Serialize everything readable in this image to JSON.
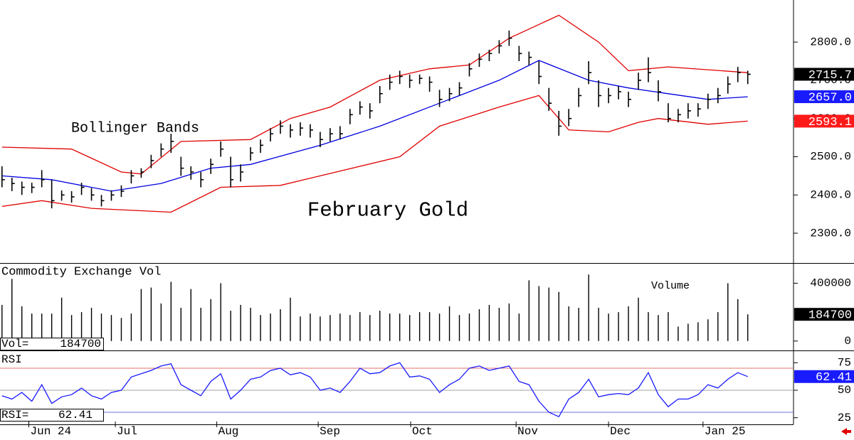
{
  "chart_data": [
    {
      "type": "ohlc",
      "title": "February Gold",
      "annotation": "Bollinger Bands",
      "xlim": [
        -0.2,
        79.6
      ],
      "ylim": [
        2222,
        2910
      ],
      "yticks": [
        {
          "value": 2300,
          "label": "2300.0"
        },
        {
          "value": 2400,
          "label": "2400.0"
        },
        {
          "value": 2500,
          "label": "2500.0"
        },
        {
          "value": 2600,
          "label": "2600.0"
        },
        {
          "value": 2700,
          "label": "2700.0"
        },
        {
          "value": 2800,
          "label": "2800.0"
        }
      ],
      "x": [
        0,
        1,
        2,
        3,
        4,
        5,
        6,
        7,
        8,
        9,
        10,
        11,
        12,
        13,
        14,
        15,
        16,
        17,
        18,
        19,
        20,
        21,
        22,
        23,
        24,
        25,
        26,
        27,
        28,
        29,
        30,
        31,
        32,
        33,
        34,
        35,
        36,
        37,
        38,
        39,
        40,
        41,
        42,
        43,
        44,
        45,
        46,
        47,
        48,
        49,
        50,
        51,
        52,
        53,
        54,
        55,
        56,
        57,
        58,
        59,
        60,
        61,
        62,
        63,
        64,
        65,
        66,
        67,
        68,
        69,
        70,
        71,
        72,
        73,
        74,
        75
      ],
      "color": "#000000",
      "high": [
        2475,
        2445,
        2435,
        2432,
        2465,
        2440,
        2412,
        2410,
        2432,
        2418,
        2400,
        2412,
        2425,
        2465,
        2470,
        2505,
        2535,
        2560,
        2500,
        2475,
        2460,
        2495,
        2540,
        2500,
        2480,
        2525,
        2545,
        2575,
        2595,
        2585,
        2590,
        2585,
        2565,
        2575,
        2580,
        2625,
        2645,
        2640,
        2685,
        2715,
        2725,
        2715,
        2715,
        2710,
        2675,
        2680,
        2695,
        2745,
        2770,
        2780,
        2805,
        2830,
        2790,
        2775,
        2750,
        2680,
        2620,
        2625,
        2680,
        2750,
        2700,
        2680,
        2685,
        2670,
        2720,
        2760,
        2700,
        2640,
        2625,
        2640,
        2640,
        2665,
        2680,
        2710,
        2735,
        2725
      ],
      "low": [
        2420,
        2410,
        2400,
        2405,
        2420,
        2365,
        2385,
        2380,
        2400,
        2385,
        2370,
        2385,
        2395,
        2430,
        2445,
        2470,
        2500,
        2510,
        2450,
        2440,
        2420,
        2455,
        2500,
        2420,
        2435,
        2490,
        2510,
        2540,
        2560,
        2550,
        2555,
        2550,
        2525,
        2540,
        2545,
        2585,
        2610,
        2600,
        2640,
        2675,
        2690,
        2680,
        2690,
        2670,
        2630,
        2645,
        2660,
        2710,
        2735,
        2750,
        2770,
        2790,
        2750,
        2740,
        2690,
        2620,
        2555,
        2580,
        2630,
        2690,
        2630,
        2640,
        2650,
        2630,
        2675,
        2695,
        2645,
        2590,
        2590,
        2600,
        2605,
        2625,
        2640,
        2665,
        2695,
        2690
      ],
      "close": [
        2440,
        2430,
        2420,
        2420,
        2440,
        2385,
        2400,
        2395,
        2420,
        2400,
        2385,
        2400,
        2410,
        2450,
        2460,
        2490,
        2520,
        2540,
        2470,
        2460,
        2440,
        2480,
        2520,
        2440,
        2460,
        2510,
        2530,
        2560,
        2580,
        2570,
        2575,
        2570,
        2545,
        2560,
        2560,
        2610,
        2630,
        2620,
        2665,
        2695,
        2710,
        2700,
        2705,
        2695,
        2650,
        2665,
        2680,
        2730,
        2755,
        2770,
        2790,
        2810,
        2770,
        2760,
        2710,
        2640,
        2580,
        2600,
        2660,
        2720,
        2660,
        2660,
        2670,
        2650,
        2700,
        2720,
        2670,
        2600,
        2610,
        2620,
        2625,
        2650,
        2660,
        2690,
        2720,
        2715.7
      ],
      "bands": [
        {
          "color": "#e00000",
          "x": [
            0,
            7,
            12,
            14,
            18,
            25,
            29,
            33,
            38,
            43,
            47,
            51,
            56,
            60,
            63,
            67,
            75
          ],
          "values": [
            2525,
            2520,
            2460,
            2455,
            2540,
            2545,
            2600,
            2630,
            2700,
            2730,
            2740,
            2810,
            2870,
            2800,
            2725,
            2735,
            2720
          ]
        },
        {
          "color": "#0000e0",
          "x": [
            0,
            5,
            11,
            16,
            21,
            25,
            32,
            38,
            44,
            50,
            54,
            59,
            63,
            67,
            71,
            75
          ],
          "values": [
            2450,
            2440,
            2410,
            2430,
            2470,
            2480,
            2530,
            2580,
            2640,
            2700,
            2752,
            2700,
            2680,
            2665,
            2650,
            2657
          ]
        },
        {
          "color": "#e00000",
          "x": [
            0,
            4,
            9,
            17,
            22,
            28,
            32,
            40,
            44,
            50,
            54,
            57,
            61,
            64,
            66,
            71,
            75
          ],
          "values": [
            2370,
            2385,
            2365,
            2355,
            2420,
            2425,
            2450,
            2500,
            2580,
            2630,
            2660,
            2570,
            2565,
            2590,
            2600,
            2585,
            2593.1
          ]
        }
      ],
      "tags": [
        {
          "value": 2715.7,
          "label": "2715.7",
          "color": "#000000"
        },
        {
          "value": 2657.0,
          "label": "2657.0",
          "color": "#1a1aff"
        },
        {
          "value": 2593.1,
          "label": "2593.1",
          "color": "#ff1a1a"
        }
      ]
    },
    {
      "type": "bar",
      "title": "Commodity Exchange Vol",
      "annotation": "Volume",
      "readout_label": "Vol=",
      "readout_value": 184700,
      "xlim": [
        -0.2,
        79.6
      ],
      "ylim": [
        -65000,
        530000
      ],
      "yticks": [
        0,
        400000
      ],
      "color": "#000000",
      "x": [
        0,
        1,
        2,
        3,
        4,
        5,
        6,
        7,
        8,
        9,
        10,
        11,
        12,
        13,
        14,
        15,
        16,
        17,
        18,
        19,
        20,
        21,
        22,
        23,
        24,
        25,
        26,
        27,
        28,
        29,
        30,
        31,
        32,
        33,
        34,
        35,
        36,
        37,
        38,
        39,
        40,
        41,
        42,
        43,
        44,
        45,
        46,
        47,
        48,
        49,
        50,
        51,
        52,
        53,
        54,
        55,
        56,
        57,
        58,
        59,
        60,
        61,
        62,
        63,
        64,
        65,
        66,
        67,
        68,
        69,
        70,
        71,
        72,
        73,
        74,
        75
      ],
      "values": [
        250000,
        430000,
        240000,
        190000,
        190000,
        190000,
        300000,
        180000,
        200000,
        230000,
        190000,
        180000,
        160000,
        190000,
        360000,
        370000,
        260000,
        410000,
        230000,
        360000,
        230000,
        290000,
        400000,
        210000,
        250000,
        230000,
        180000,
        190000,
        220000,
        300000,
        170000,
        190000,
        170000,
        180000,
        190000,
        180000,
        200000,
        180000,
        210000,
        190000,
        190000,
        180000,
        200000,
        200000,
        190000,
        240000,
        180000,
        190000,
        220000,
        250000,
        230000,
        260000,
        190000,
        420000,
        380000,
        370000,
        340000,
        240000,
        230000,
        460000,
        230000,
        190000,
        200000,
        240000,
        300000,
        200000,
        180000,
        200000,
        100000,
        120000,
        130000,
        150000,
        200000,
        400000,
        290000,
        184700
      ],
      "tags": [
        {
          "value": 184700,
          "label": "184700",
          "color": "#000000"
        }
      ]
    },
    {
      "type": "line",
      "title": "RSI",
      "readout_label": "RSI=",
      "readout_value": 62.41,
      "xlim": [
        -0.2,
        79.6
      ],
      "ylim": [
        19,
        85.5
      ],
      "yticks": [
        25,
        50,
        75
      ],
      "color": "#1a1aff",
      "levels": [
        {
          "value": 70,
          "color": "#e07070"
        },
        {
          "value": 50,
          "color": "#a0a0a0"
        },
        {
          "value": 30,
          "color": "#7070e0"
        }
      ],
      "xticks": [
        {
          "value": 2.7,
          "label": "Jun 24"
        },
        {
          "value": 11.4,
          "label": "Jul"
        },
        {
          "value": 21.6,
          "label": "Aug"
        },
        {
          "value": 31.8,
          "label": "Sep"
        },
        {
          "value": 41.1,
          "label": "Oct"
        },
        {
          "value": 51.7,
          "label": "Nov"
        },
        {
          "value": 61,
          "label": "Dec"
        },
        {
          "value": 70.5,
          "label": "Jan 25"
        }
      ],
      "x": [
        0,
        1,
        2,
        3,
        4,
        5,
        6,
        7,
        8,
        9,
        10,
        11,
        12,
        13,
        14,
        15,
        16,
        17,
        18,
        19,
        20,
        21,
        22,
        23,
        24,
        25,
        26,
        27,
        28,
        29,
        30,
        31,
        32,
        33,
        34,
        35,
        36,
        37,
        38,
        39,
        40,
        41,
        42,
        43,
        44,
        45,
        46,
        47,
        48,
        49,
        50,
        51,
        52,
        53,
        54,
        55,
        56,
        57,
        58,
        59,
        60,
        61,
        62,
        63,
        64,
        65,
        66,
        67,
        68,
        69,
        70,
        71,
        72,
        73,
        74,
        75
      ],
      "values": [
        45,
        42,
        48,
        40,
        55,
        38,
        44,
        46,
        52,
        45,
        42,
        48,
        50,
        62,
        65,
        68,
        72,
        74,
        55,
        50,
        45,
        58,
        65,
        42,
        50,
        60,
        62,
        68,
        70,
        64,
        66,
        62,
        50,
        52,
        48,
        58,
        70,
        65,
        66,
        72,
        75,
        62,
        63,
        60,
        48,
        55,
        60,
        70,
        72,
        68,
        70,
        72,
        58,
        55,
        40,
        30,
        26,
        42,
        48,
        60,
        44,
        46,
        47,
        46,
        52,
        66,
        46,
        35,
        42,
        42,
        46,
        55,
        52,
        60,
        66,
        62.41
      ],
      "tags": [
        {
          "value": 62.41,
          "label": "62.41",
          "color": "#1a1aff"
        }
      ]
    }
  ]
}
